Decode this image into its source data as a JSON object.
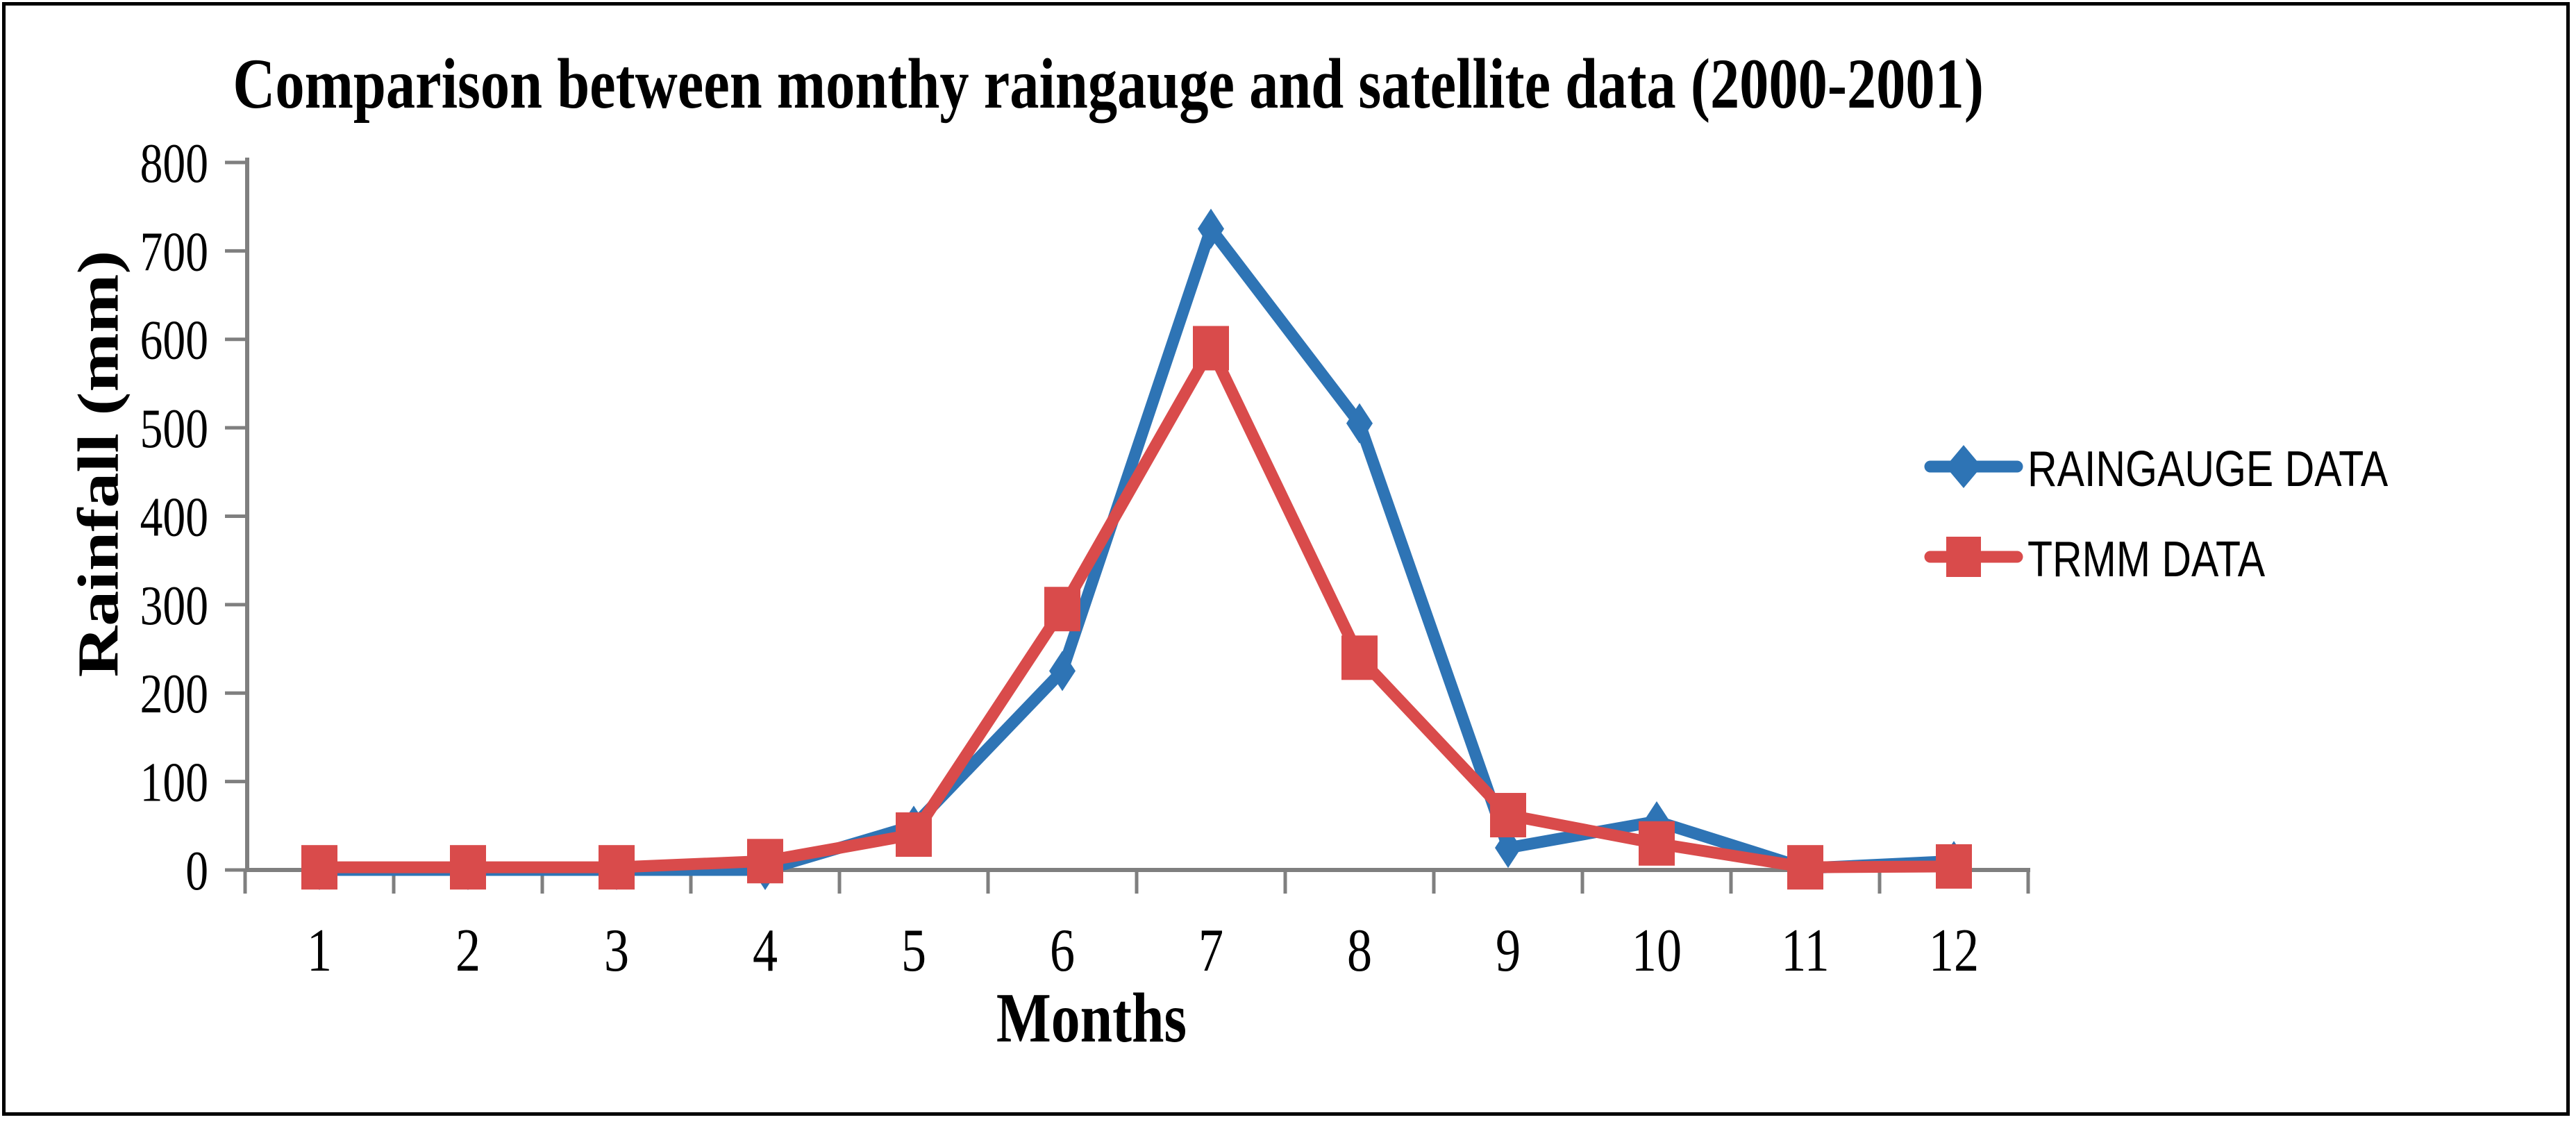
{
  "chart_data": {
    "type": "line",
    "title": "Comparison between  monthy raingauge and satellite data (2000-2001)",
    "xlabel": "Months",
    "ylabel": "Rainfall (mm)",
    "categories": [
      "1",
      "2",
      "3",
      "4",
      "5",
      "6",
      "7",
      "8",
      "9",
      "10",
      "11",
      "12"
    ],
    "ylim": [
      0,
      800
    ],
    "yticks": [
      "0",
      "100",
      "200",
      "300",
      "400",
      "500",
      "600",
      "700",
      "800"
    ],
    "grid": false,
    "legend_position": "middle-right",
    "axis_color": "#7F7F7F",
    "text_color": "#000000",
    "background_color": "#FFFFFF",
    "border_color": "#000000",
    "series": [
      {
        "name": "RAINGAUGE DATA",
        "color": "#2E74B5",
        "marker": "diamond",
        "values": [
          0,
          0,
          0,
          0,
          50,
          225,
          725,
          505,
          25,
          55,
          2,
          10
        ]
      },
      {
        "name": "TRMM DATA",
        "color": "#D94B4B",
        "marker": "square",
        "values": [
          3,
          3,
          3,
          10,
          40,
          295,
          590,
          240,
          62,
          30,
          3,
          4
        ]
      }
    ]
  }
}
